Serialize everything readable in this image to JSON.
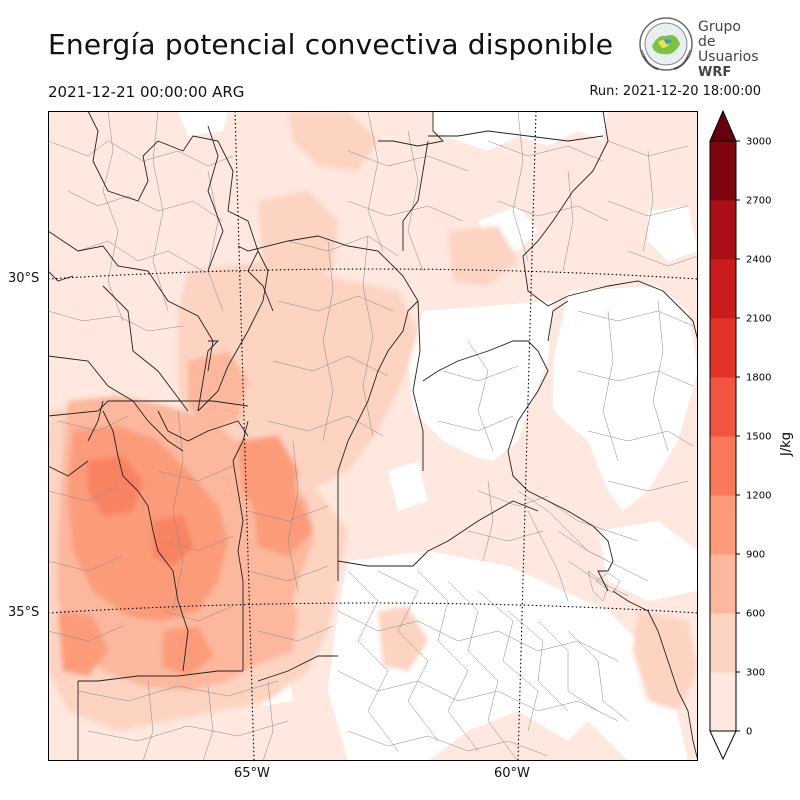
{
  "header": {
    "title": "Energía potencial convectiva disponible",
    "valid_time": "2021-12-21 00:00:00 ARG",
    "run_time": "Run: 2021-12-20 18:00:00"
  },
  "logo": {
    "line1": "Grupo de",
    "line2": "Usuarios",
    "line3": "WRF"
  },
  "map": {
    "lat_labels": [
      "30°S",
      "35°S"
    ],
    "lon_labels": [
      "65°W",
      "60°W"
    ]
  },
  "colorbar": {
    "unit": "J/kg",
    "ticks": [
      "0",
      "300",
      "600",
      "900",
      "1200",
      "1500",
      "1800",
      "2100",
      "2400",
      "2700",
      "3000"
    ],
    "colors": [
      "#fee8df",
      "#fdd3c2",
      "#fcb79c",
      "#fb9b7a",
      "#f8795a",
      "#f15440",
      "#e23428",
      "#ca1b1d",
      "#a90f15",
      "#7f0510"
    ]
  }
}
